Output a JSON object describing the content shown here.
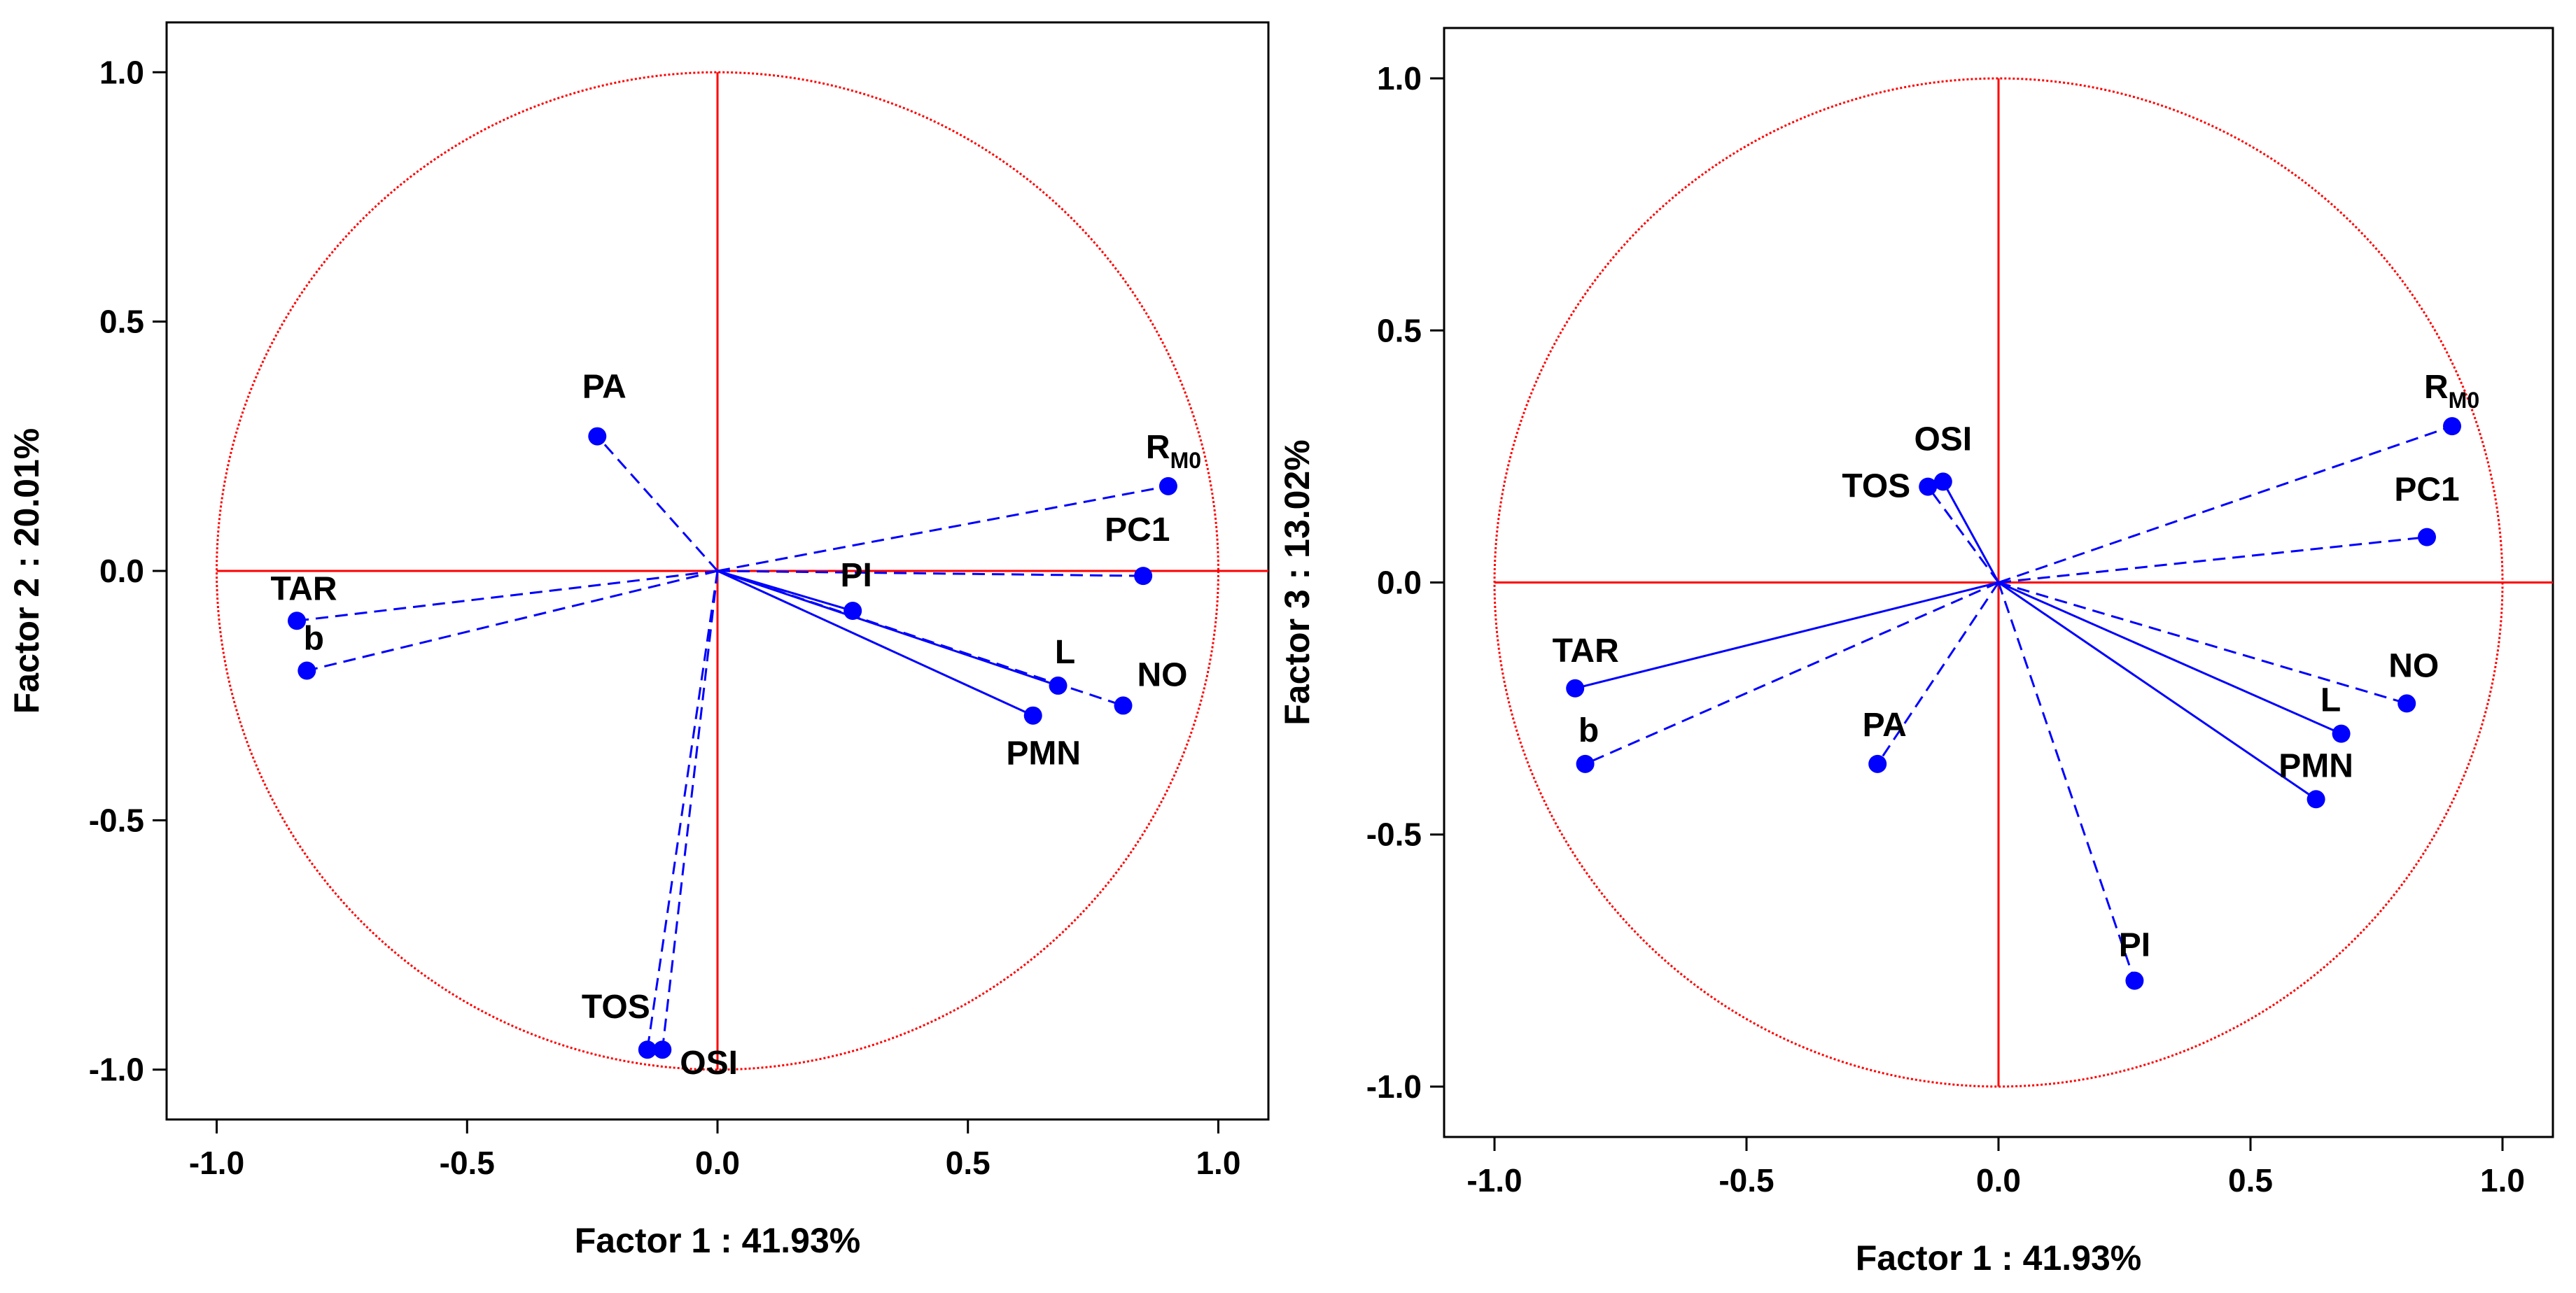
{
  "chart_data": [
    {
      "type": "scatter",
      "subtype": "correlation-circle",
      "xlabel": "Factor 1 : 41.93%",
      "ylabel": "Factor 2 : 20.01%",
      "xlim": [
        -1.1,
        1.1
      ],
      "ylim": [
        -1.1,
        1.1
      ],
      "x_ticks": [
        -1.0,
        -0.5,
        0.0,
        0.5,
        1.0
      ],
      "y_ticks": [
        -1.0,
        -0.5,
        0.0,
        0.5,
        1.0
      ],
      "x_tick_labels": [
        "-1.0",
        "-0.5",
        "0.0",
        "0.5",
        "1.0"
      ],
      "y_tick_labels": [
        "-1.0",
        "-0.5",
        "0.0",
        "0.5",
        "1.0"
      ],
      "circle_radius": 1.0,
      "colors": {
        "circle": "#ff0000",
        "axes": "#ff0000",
        "vectors": "#0000ff",
        "points": "#0000ff"
      },
      "points": [
        {
          "label": "PA",
          "sub": "",
          "x": -0.24,
          "y": 0.27,
          "style": "dashed"
        },
        {
          "label": "R",
          "sub": "M0",
          "x": 0.9,
          "y": 0.17,
          "style": "dashed"
        },
        {
          "label": "PC1",
          "sub": "",
          "x": 0.85,
          "y": -0.01,
          "style": "dashed"
        },
        {
          "label": "TAR",
          "sub": "",
          "x": -0.84,
          "y": -0.1,
          "style": "dashed"
        },
        {
          "label": "b",
          "sub": "",
          "x": -0.82,
          "y": -0.2,
          "style": "dashed"
        },
        {
          "label": "PI",
          "sub": "",
          "x": 0.27,
          "y": -0.08,
          "style": "solid"
        },
        {
          "label": "L",
          "sub": "",
          "x": 0.68,
          "y": -0.23,
          "style": "solid"
        },
        {
          "label": "NO",
          "sub": "",
          "x": 0.81,
          "y": -0.27,
          "style": "dashed"
        },
        {
          "label": "PMN",
          "sub": "",
          "x": 0.63,
          "y": -0.29,
          "style": "solid"
        },
        {
          "label": "TOS",
          "sub": "",
          "x": -0.14,
          "y": -0.96,
          "style": "dashed"
        },
        {
          "label": "OSI",
          "sub": "",
          "x": -0.11,
          "y": -0.96,
          "style": "dashed"
        }
      ]
    },
    {
      "type": "scatter",
      "subtype": "correlation-circle",
      "xlabel": "Factor 1 : 41.93%",
      "ylabel": "Factor 3 : 13.02%",
      "xlim": [
        -1.1,
        1.1
      ],
      "ylim": [
        -1.1,
        1.1
      ],
      "x_ticks": [
        -1.0,
        -0.5,
        0.0,
        0.5,
        1.0
      ],
      "y_ticks": [
        -1.0,
        -0.5,
        0.0,
        0.5,
        1.0
      ],
      "x_tick_labels": [
        "-1.0",
        "-0.5",
        "0.0",
        "0.5",
        "1.0"
      ],
      "y_tick_labels": [
        "-1.0",
        "-0.5",
        "0.0",
        "0.5",
        "1.0"
      ],
      "circle_radius": 1.0,
      "colors": {
        "circle": "#ff0000",
        "axes": "#ff0000",
        "vectors": "#0000ff",
        "points": "#0000ff"
      },
      "points": [
        {
          "label": "R",
          "sub": "M0",
          "x": 0.9,
          "y": 0.31,
          "style": "dashed"
        },
        {
          "label": "PC1",
          "sub": "",
          "x": 0.85,
          "y": 0.09,
          "style": "dashed"
        },
        {
          "label": "OSI",
          "sub": "",
          "x": -0.11,
          "y": 0.2,
          "style": "solid"
        },
        {
          "label": "TOS",
          "sub": "",
          "x": -0.14,
          "y": 0.19,
          "style": "dashed"
        },
        {
          "label": "TAR",
          "sub": "",
          "x": -0.84,
          "y": -0.21,
          "style": "solid"
        },
        {
          "label": "b",
          "sub": "",
          "x": -0.82,
          "y": -0.36,
          "style": "dashed"
        },
        {
          "label": "PA",
          "sub": "",
          "x": -0.24,
          "y": -0.36,
          "style": "dashed"
        },
        {
          "label": "NO",
          "sub": "",
          "x": 0.81,
          "y": -0.24,
          "style": "dashed"
        },
        {
          "label": "L",
          "sub": "",
          "x": 0.68,
          "y": -0.3,
          "style": "solid"
        },
        {
          "label": "PMN",
          "sub": "",
          "x": 0.63,
          "y": -0.43,
          "style": "solid"
        },
        {
          "label": "PI",
          "sub": "",
          "x": 0.27,
          "y": -0.79,
          "style": "dashed"
        }
      ]
    }
  ]
}
